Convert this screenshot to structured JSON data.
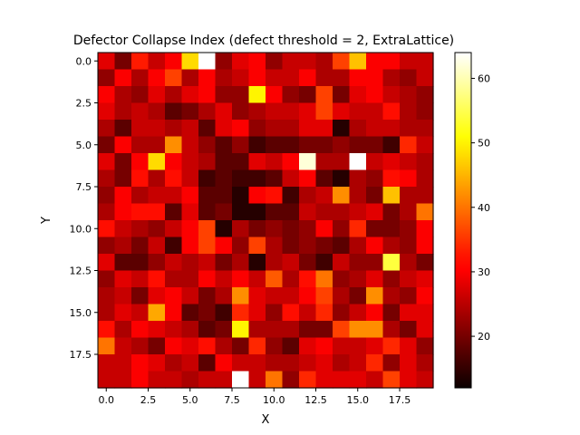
{
  "chart_data": {
    "type": "heatmap",
    "title": "Defector Collapse Index (defect threshold = 2, ExtraLattice)",
    "xlabel": "X",
    "ylabel": "Y",
    "colormap": "hot",
    "xlim": [
      -0.5,
      19.5
    ],
    "ylim": [
      19.5,
      -0.5
    ],
    "clim": [
      12,
      64
    ],
    "x_ticks": [
      0.0,
      2.5,
      5.0,
      7.5,
      10.0,
      12.5,
      15.0,
      17.5
    ],
    "x_tick_labels": [
      "0.0",
      "2.5",
      "5.0",
      "7.5",
      "10.0",
      "12.5",
      "15.0",
      "17.5"
    ],
    "y_ticks": [
      0.0,
      2.5,
      5.0,
      7.5,
      10.0,
      12.5,
      15.0,
      17.5
    ],
    "y_tick_labels": [
      "0.0",
      "2.5",
      "5.0",
      "7.5",
      "10.0",
      "12.5",
      "15.0",
      "17.5"
    ],
    "colorbar_ticks": [
      20,
      30,
      40,
      50,
      60
    ],
    "colorbar_tick_labels": [
      "20",
      "30",
      "40",
      "50",
      "60"
    ],
    "z": [
      [
        28,
        20,
        33,
        26,
        30,
        48,
        64,
        22,
        28,
        30,
        22,
        26,
        26,
        24,
        36,
        46,
        30,
        30,
        26,
        26
      ],
      [
        22,
        30,
        24,
        30,
        36,
        24,
        30,
        24,
        26,
        30,
        26,
        26,
        30,
        24,
        24,
        30,
        30,
        24,
        22,
        26
      ],
      [
        30,
        24,
        22,
        28,
        24,
        28,
        30,
        22,
        22,
        50,
        30,
        22,
        20,
        36,
        20,
        28,
        30,
        26,
        24,
        22
      ],
      [
        28,
        24,
        26,
        24,
        18,
        20,
        24,
        28,
        22,
        24,
        26,
        26,
        28,
        36,
        28,
        26,
        26,
        32,
        24,
        22
      ],
      [
        24,
        18,
        26,
        26,
        24,
        26,
        18,
        28,
        30,
        22,
        24,
        24,
        28,
        28,
        14,
        24,
        26,
        26,
        24,
        24
      ],
      [
        20,
        30,
        24,
        24,
        42,
        26,
        22,
        18,
        22,
        16,
        18,
        18,
        20,
        20,
        22,
        20,
        20,
        16,
        34,
        26
      ],
      [
        28,
        20,
        30,
        48,
        30,
        26,
        24,
        18,
        18,
        28,
        26,
        30,
        62,
        24,
        24,
        64,
        26,
        28,
        26,
        24
      ],
      [
        24,
        20,
        32,
        24,
        32,
        26,
        16,
        18,
        16,
        16,
        18,
        26,
        30,
        18,
        14,
        24,
        22,
        32,
        30,
        24
      ],
      [
        22,
        30,
        24,
        26,
        26,
        30,
        18,
        18,
        14,
        30,
        32,
        16,
        24,
        26,
        42,
        24,
        20,
        46,
        24,
        24
      ],
      [
        24,
        30,
        32,
        32,
        18,
        28,
        18,
        20,
        14,
        14,
        18,
        18,
        26,
        24,
        24,
        26,
        28,
        20,
        24,
        40
      ],
      [
        32,
        26,
        24,
        22,
        26,
        30,
        36,
        14,
        24,
        20,
        22,
        20,
        22,
        30,
        22,
        34,
        20,
        20,
        22,
        30
      ],
      [
        22,
        24,
        20,
        26,
        16,
        30,
        36,
        30,
        22,
        36,
        24,
        20,
        22,
        20,
        18,
        24,
        30,
        24,
        22,
        30
      ],
      [
        28,
        18,
        18,
        22,
        26,
        24,
        26,
        20,
        24,
        14,
        24,
        26,
        20,
        16,
        26,
        22,
        22,
        54,
        24,
        20
      ],
      [
        22,
        28,
        26,
        32,
        24,
        24,
        30,
        26,
        30,
        26,
        38,
        24,
        32,
        40,
        22,
        24,
        28,
        22,
        26,
        28
      ],
      [
        24,
        26,
        20,
        28,
        30,
        26,
        20,
        24,
        42,
        28,
        26,
        26,
        30,
        36,
        24,
        20,
        42,
        24,
        22,
        30
      ],
      [
        24,
        28,
        26,
        44,
        30,
        18,
        20,
        16,
        34,
        28,
        22,
        32,
        26,
        34,
        22,
        26,
        30,
        20,
        28,
        28
      ],
      [
        32,
        24,
        30,
        28,
        26,
        24,
        18,
        20,
        50,
        24,
        24,
        24,
        20,
        20,
        36,
        42,
        42,
        24,
        20,
        28
      ],
      [
        40,
        26,
        24,
        20,
        30,
        28,
        32,
        24,
        20,
        34,
        22,
        18,
        28,
        30,
        26,
        26,
        28,
        34,
        28,
        22
      ],
      [
        26,
        26,
        30,
        28,
        24,
        26,
        18,
        30,
        26,
        26,
        24,
        24,
        26,
        28,
        24,
        26,
        34,
        22,
        28,
        24
      ],
      [
        26,
        26,
        30,
        26,
        26,
        24,
        26,
        26,
        64,
        26,
        40,
        22,
        34,
        28,
        28,
        28,
        26,
        36,
        28,
        26
      ]
    ]
  }
}
